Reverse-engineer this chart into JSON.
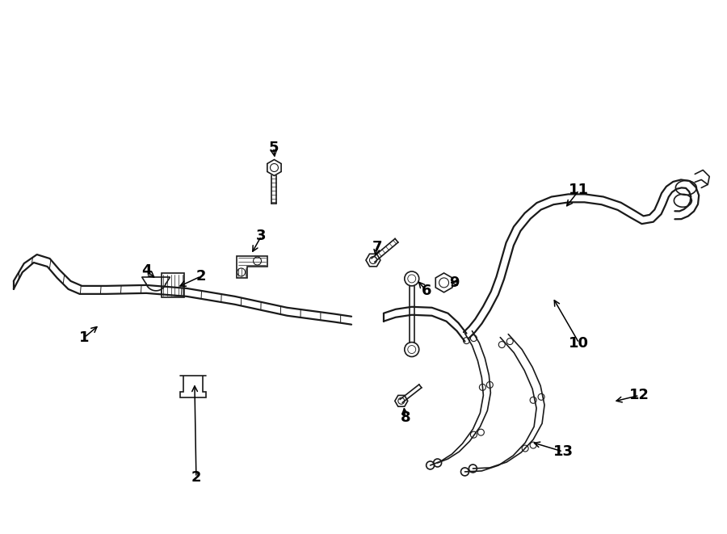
{
  "bg_color": "#ffffff",
  "line_color": "#1a1a1a",
  "label_color": "#000000",
  "lw_main": 1.6,
  "lw_thin": 1.2,
  "label_fontsize": 13,
  "fig_width": 9.0,
  "fig_height": 6.61,
  "dpi": 100
}
